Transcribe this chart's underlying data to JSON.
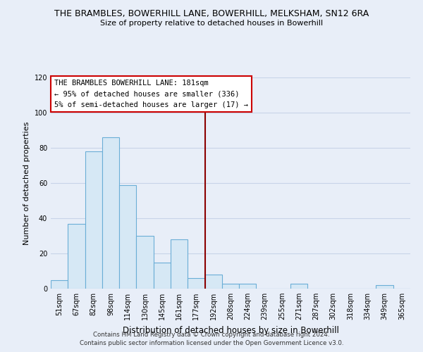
{
  "title": "THE BRAMBLES, BOWERHILL LANE, BOWERHILL, MELKSHAM, SN12 6RA",
  "subtitle": "Size of property relative to detached houses in Bowerhill",
  "xlabel": "Distribution of detached houses by size in Bowerhill",
  "ylabel": "Number of detached properties",
  "bar_labels": [
    "51sqm",
    "67sqm",
    "82sqm",
    "98sqm",
    "114sqm",
    "130sqm",
    "145sqm",
    "161sqm",
    "177sqm",
    "192sqm",
    "208sqm",
    "224sqm",
    "239sqm",
    "255sqm",
    "271sqm",
    "287sqm",
    "302sqm",
    "318sqm",
    "334sqm",
    "349sqm",
    "365sqm"
  ],
  "bar_values": [
    5,
    37,
    78,
    86,
    59,
    30,
    15,
    28,
    6,
    8,
    3,
    3,
    0,
    0,
    3,
    0,
    0,
    0,
    0,
    2,
    0
  ],
  "bar_color": "#d6e8f5",
  "bar_edge_color": "#6aaed6",
  "vline_x": 8.5,
  "vline_color": "#8b0000",
  "ylim": [
    0,
    120
  ],
  "yticks": [
    0,
    20,
    40,
    60,
    80,
    100,
    120
  ],
  "annotation_title": "THE BRAMBLES BOWERHILL LANE: 181sqm",
  "annotation_line1": "← 95% of detached houses are smaller (336)",
  "annotation_line2": "5% of semi-detached houses are larger (17) →",
  "annotation_box_color": "#ffffff",
  "annotation_box_edge": "#cc0000",
  "footer_line1": "Contains HM Land Registry data © Crown copyright and database right 2024.",
  "footer_line2": "Contains public sector information licensed under the Open Government Licence v3.0.",
  "background_color": "#e8eef8",
  "grid_color": "#c8d4e8"
}
